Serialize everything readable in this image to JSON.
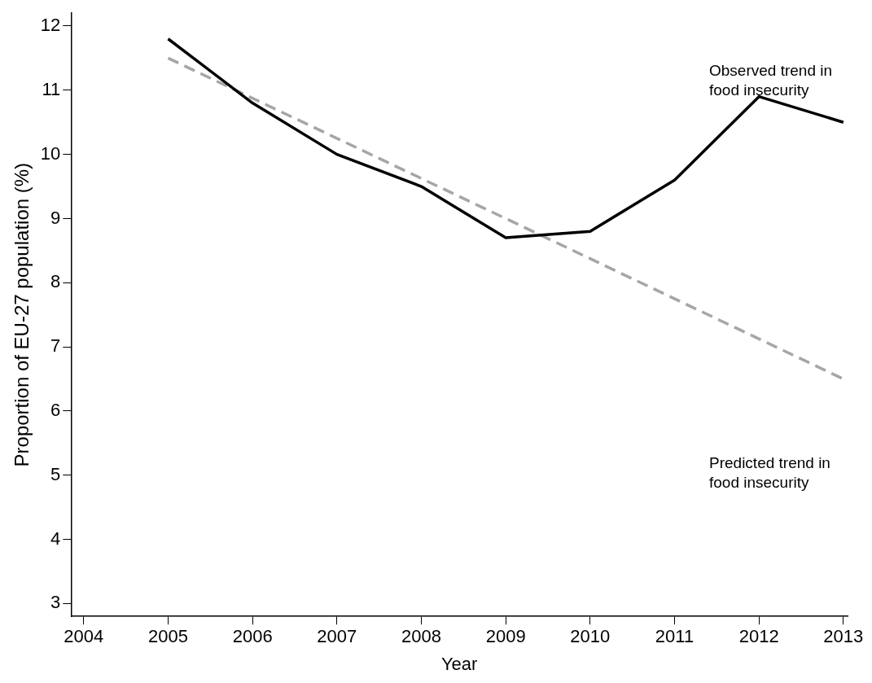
{
  "chart_data": {
    "type": "line",
    "xlabel": "Year",
    "ylabel": "Proportion of EU-27 population (%)",
    "xlim": [
      2003.85,
      2013.05
    ],
    "xticks": [
      2004,
      2005,
      2006,
      2007,
      2008,
      2009,
      2010,
      2011,
      2012,
      2013
    ],
    "ylim": [
      2.8,
      12.2
    ],
    "yticks": [
      3,
      4,
      5,
      6,
      7,
      8,
      9,
      10,
      11,
      12
    ],
    "grid": false,
    "legend": false,
    "marker": "none",
    "series": [
      {
        "x": [
          2005,
          2006,
          2007,
          2008,
          2009,
          2010,
          2011,
          2012,
          2013
        ],
        "values": [
          11.8,
          10.8,
          10.0,
          9.5,
          8.7,
          8.8,
          9.6,
          10.9,
          10.5
        ],
        "color": "#000000",
        "line_style": "solid"
      },
      {
        "x": [
          2005,
          2013
        ],
        "values": [
          11.5,
          6.5
        ],
        "color": "#a6a6a6",
        "line_style": "dashed"
      }
    ],
    "annotations": [
      "Observed trend in food insecurity",
      "Predicted trend in food insecurity"
    ]
  }
}
